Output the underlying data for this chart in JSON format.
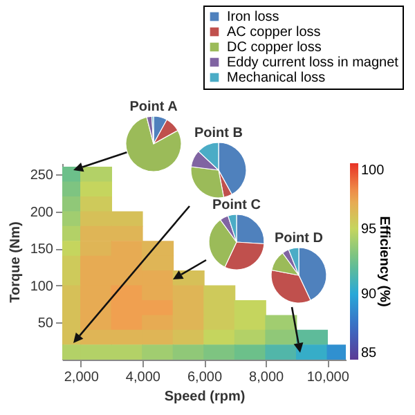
{
  "chart_data": [
    {
      "type": "scatter",
      "xlabel": "Speed (rpm)",
      "ylabel": "Torque (Nm)",
      "clabel": "Efficiency (%)",
      "marker": "square",
      "x": [
        1500,
        2500,
        1500,
        2500,
        1500,
        2500,
        1500,
        2500,
        3500,
        1500,
        2500,
        3500,
        1500,
        2500,
        3500,
        4500,
        1500,
        2500,
        3500,
        4500,
        1500,
        2500,
        3500,
        4500,
        5500,
        1500,
        2500,
        3500,
        4500,
        5500,
        6500,
        1500,
        2500,
        3500,
        4500,
        5500,
        6500,
        7500,
        1500,
        2500,
        3500,
        4500,
        5500,
        6500,
        7500,
        8500,
        1500,
        2500,
        3500,
        4500,
        5500,
        6500,
        7500,
        8500,
        9500,
        1500,
        2500,
        3500,
        4500,
        5500,
        6500,
        7500,
        8500,
        9500,
        10500
      ],
      "values": [
        250,
        250,
        230,
        230,
        210,
        210,
        190,
        190,
        190,
        170,
        170,
        170,
        150,
        150,
        150,
        150,
        130,
        130,
        130,
        130,
        110,
        110,
        110,
        110,
        110,
        90,
        90,
        90,
        90,
        90,
        90,
        70,
        70,
        70,
        70,
        70,
        70,
        70,
        50,
        50,
        50,
        50,
        50,
        50,
        50,
        50,
        30,
        30,
        30,
        30,
        30,
        30,
        30,
        30,
        30,
        10,
        10,
        10,
        10,
        10,
        10,
        10,
        10,
        10,
        10
      ],
      "cvalues": [
        92.5,
        94.5,
        93,
        95,
        93.5,
        95.5,
        94,
        96,
        96,
        94.5,
        96.5,
        96.5,
        95,
        96.5,
        97,
        96.5,
        95.5,
        97,
        97,
        96.5,
        95.5,
        97,
        97,
        97,
        96,
        96,
        97,
        97.5,
        97,
        96.5,
        95.5,
        96,
        97,
        97.5,
        97.5,
        96.5,
        95.5,
        95,
        96,
        97,
        97.5,
        97,
        96.5,
        95.5,
        95,
        94,
        96,
        96.5,
        96.5,
        96.5,
        96,
        95,
        94.5,
        93.5,
        92,
        94.5,
        94.5,
        94.5,
        94,
        93.5,
        93,
        92.5,
        91.5,
        90.5,
        89
      ],
      "xlim": [
        1400,
        10600
      ],
      "ylim": [
        0,
        265
      ],
      "xticks": [
        {
          "value": 2000,
          "label": "2,000"
        },
        {
          "value": 4000,
          "label": "4,000"
        },
        {
          "value": 6000,
          "label": "6,000"
        },
        {
          "value": 8000,
          "label": "8,000"
        },
        {
          "value": 10000,
          "label": "10,000"
        }
      ],
      "yticks": [
        50,
        100,
        150,
        200,
        250
      ],
      "clim": [
        85,
        100
      ],
      "cticks": [
        85,
        90,
        95,
        100
      ],
      "grid": false
    },
    {
      "type": "pie",
      "legend": "top right",
      "categories": [
        "Iron loss",
        "AC copper loss",
        "DC copper loss",
        "Eddy current loss in magnet",
        "Mechanical loss"
      ],
      "colors": [
        "#4f81bd",
        "#c0504d",
        "#9bbb59",
        "#8064a2",
        "#4bacc6"
      ],
      "series": [
        {
          "name": "Point A",
          "values": [
            8,
            9,
            79,
            3,
            1
          ]
        },
        {
          "name": "Point B",
          "values": [
            42,
            5,
            30,
            10,
            13
          ]
        },
        {
          "name": "Point C",
          "values": [
            26,
            31,
            33,
            5,
            5
          ]
        },
        {
          "name": "Point D",
          "values": [
            43,
            35,
            12,
            4,
            6
          ]
        }
      ]
    }
  ]
}
